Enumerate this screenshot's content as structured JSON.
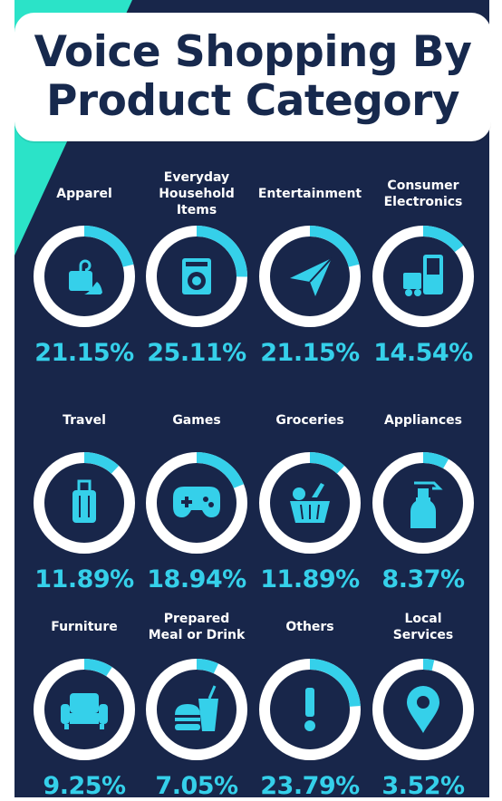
{
  "title": "Voice Shopping By Product Category",
  "colors": {
    "background": "#18264a",
    "accent_wedge": "#2be3c8",
    "ring_track": "#ffffff",
    "ring_fill": "#35d0ea",
    "icon": "#35d0ea",
    "percent_text": "#35d0ea",
    "label_text": "#ffffff",
    "title_text": "#17294d"
  },
  "chart_data": {
    "type": "donut-grid",
    "title": "Voice Shopping By Product Category",
    "unit": "%",
    "categories": [
      "Apparel",
      "Everyday\nHousehold\nItems",
      "Entertainment",
      "Consumer\nElectronics",
      "Travel",
      "Games",
      "Groceries",
      "Appliances",
      "Furniture",
      "Prepared\nMeal or Drink",
      "Others",
      "Local\nServices"
    ],
    "values": [
      21.15,
      25.11,
      21.15,
      14.54,
      11.89,
      18.94,
      11.89,
      8.37,
      9.25,
      7.05,
      23.79,
      3.52
    ],
    "value_labels": [
      "21.15%",
      "25.11%",
      "21.15%",
      "14.54%",
      "11.89%",
      "18.94%",
      "11.89%",
      "8.37%",
      "9.25%",
      "7.05%",
      "23.79%",
      "3.52%"
    ],
    "icons": [
      "apparel-icon",
      "washing-machine-icon",
      "paper-plane-icon",
      "electronics-icon",
      "suitcase-icon",
      "gamepad-icon",
      "grocery-basket-icon",
      "spray-bottle-icon",
      "armchair-icon",
      "burger-drink-icon",
      "exclamation-icon",
      "location-pin-icon"
    ]
  }
}
